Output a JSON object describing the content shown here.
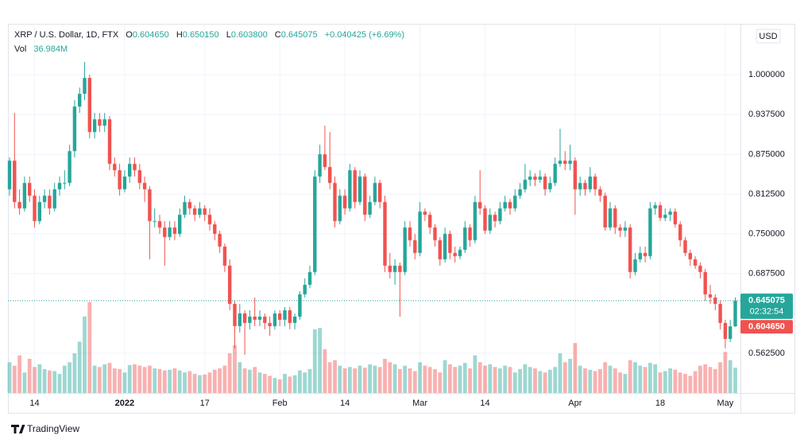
{
  "chart_data": {
    "type": "candlestick",
    "title": "XRP / U.S. Dollar, 1D, FTX",
    "legend": {
      "open_key": "O",
      "open": "0.604650",
      "high_key": "H",
      "high": "0.650150",
      "low_key": "L",
      "low": "0.603800",
      "close_key": "C",
      "close": "0.645075",
      "change": "+0.040425 (+6.69%)",
      "volume_key": "Vol",
      "volume": "36.984M"
    },
    "countdown": "02:32:54",
    "currency": "USD",
    "brand": "TradingView",
    "up_color": "#26a69a",
    "down_color": "#ef5350",
    "grid": true,
    "ylim": [
      0.5,
      1.08
    ],
    "yticks": [
      {
        "value": 0.5625,
        "label": "0.562500"
      },
      {
        "value": 0.6875,
        "label": "0.687500"
      },
      {
        "value": 0.75,
        "label": "0.750000"
      },
      {
        "value": 0.8125,
        "label": "0.812500"
      },
      {
        "value": 0.875,
        "label": "0.875000"
      },
      {
        "value": 0.9375,
        "label": "0.937500"
      },
      {
        "value": 1,
        "label": "1.000000"
      }
    ],
    "volume_ylim": [
      0,
      540
    ],
    "xticks": [
      {
        "value": 5,
        "label": "14"
      },
      {
        "value": 23,
        "label": "2022"
      },
      {
        "value": 39,
        "label": "17"
      },
      {
        "value": 54,
        "label": "Feb"
      },
      {
        "value": 67,
        "label": "14"
      },
      {
        "value": 82,
        "label": "Mar"
      },
      {
        "value": 95,
        "label": "14"
      },
      {
        "value": 113,
        "label": "Apr"
      },
      {
        "value": 130,
        "label": "18"
      },
      {
        "value": 143,
        "label": "May"
      }
    ],
    "open": [
      0.82,
      0.865,
      0.8,
      0.79,
      0.83,
      0.81,
      0.77,
      0.8,
      0.81,
      0.79,
      0.82,
      0.83,
      0.83,
      0.88,
      0.95,
      0.97,
      0.995,
      0.91,
      0.93,
      0.92,
      0.93,
      0.86,
      0.85,
      0.82,
      0.84,
      0.86,
      0.85,
      0.83,
      0.82,
      0.77,
      0.77,
      0.76,
      0.745,
      0.76,
      0.75,
      0.78,
      0.8,
      0.79,
      0.78,
      0.79,
      0.78,
      0.765,
      0.75,
      0.73,
      0.7,
      0.64,
      0.605,
      0.625,
      0.61,
      0.62,
      0.615,
      0.62,
      0.61,
      0.605,
      0.625,
      0.615,
      0.63,
      0.61,
      0.62,
      0.655,
      0.67,
      0.69,
      0.84,
      0.875,
      0.855,
      0.83,
      0.77,
      0.81,
      0.79,
      0.85,
      0.8,
      0.84,
      0.78,
      0.8,
      0.83,
      0.8,
      0.7,
      0.69,
      0.7,
      0.69,
      0.76,
      0.74,
      0.72,
      0.785,
      0.78,
      0.76,
      0.74,
      0.71,
      0.75,
      0.72,
      0.715,
      0.725,
      0.76,
      0.74,
      0.8,
      0.79,
      0.755,
      0.78,
      0.77,
      0.79,
      0.8,
      0.79,
      0.81,
      0.82,
      0.835,
      0.84,
      0.835,
      0.84,
      0.82,
      0.83,
      0.86,
      0.865,
      0.86,
      0.865,
      0.82,
      0.83,
      0.82,
      0.84,
      0.82,
      0.81,
      0.76,
      0.79,
      0.76,
      0.755,
      0.76,
      0.69,
      0.71,
      0.72,
      0.715,
      0.79,
      0.795,
      0.775,
      0.78,
      0.785,
      0.765,
      0.74,
      0.72,
      0.71,
      0.7,
      0.69,
      0.655,
      0.65,
      0.64,
      0.61,
      0.585,
      0.60465
    ],
    "high": [
      0.87,
      0.94,
      0.82,
      0.84,
      0.84,
      0.82,
      0.81,
      0.82,
      0.82,
      0.83,
      0.84,
      0.85,
      0.89,
      0.96,
      0.98,
      1.02,
      1.0,
      0.94,
      0.94,
      0.94,
      0.935,
      0.87,
      0.86,
      0.85,
      0.87,
      0.87,
      0.86,
      0.84,
      0.825,
      0.79,
      0.78,
      0.77,
      0.77,
      0.77,
      0.79,
      0.81,
      0.805,
      0.795,
      0.8,
      0.795,
      0.79,
      0.77,
      0.755,
      0.735,
      0.71,
      0.645,
      0.64,
      0.63,
      0.63,
      0.65,
      0.63,
      0.625,
      0.62,
      0.63,
      0.63,
      0.635,
      0.635,
      0.625,
      0.66,
      0.68,
      0.7,
      0.85,
      0.89,
      0.92,
      0.91,
      0.84,
      0.82,
      0.82,
      0.86,
      0.855,
      0.85,
      0.845,
      0.81,
      0.84,
      0.835,
      0.81,
      0.72,
      0.71,
      0.705,
      0.77,
      0.77,
      0.75,
      0.8,
      0.79,
      0.785,
      0.765,
      0.745,
      0.76,
      0.755,
      0.73,
      0.73,
      0.77,
      0.765,
      0.81,
      0.85,
      0.795,
      0.79,
      0.785,
      0.8,
      0.81,
      0.805,
      0.82,
      0.83,
      0.86,
      0.85,
      0.845,
      0.85,
      0.845,
      0.84,
      0.87,
      0.915,
      0.88,
      0.89,
      0.87,
      0.84,
      0.835,
      0.855,
      0.845,
      0.825,
      0.815,
      0.8,
      0.795,
      0.765,
      0.77,
      0.765,
      0.72,
      0.73,
      0.73,
      0.8,
      0.8,
      0.8,
      0.79,
      0.79,
      0.79,
      0.77,
      0.745,
      0.725,
      0.715,
      0.705,
      0.695,
      0.67,
      0.655,
      0.645,
      0.615,
      0.615,
      0.65015
    ],
    "low": [
      0.81,
      0.79,
      0.78,
      0.785,
      0.8,
      0.76,
      0.765,
      0.79,
      0.78,
      0.785,
      0.81,
      0.82,
      0.825,
      0.87,
      0.94,
      0.96,
      0.9,
      0.9,
      0.91,
      0.91,
      0.85,
      0.84,
      0.81,
      0.815,
      0.83,
      0.84,
      0.82,
      0.8,
      0.71,
      0.76,
      0.75,
      0.7,
      0.74,
      0.74,
      0.745,
      0.775,
      0.78,
      0.77,
      0.775,
      0.77,
      0.755,
      0.74,
      0.72,
      0.69,
      0.63,
      0.57,
      0.595,
      0.56,
      0.6,
      0.605,
      0.605,
      0.6,
      0.59,
      0.6,
      0.605,
      0.605,
      0.6,
      0.6,
      0.615,
      0.65,
      0.665,
      0.685,
      0.83,
      0.85,
      0.82,
      0.76,
      0.765,
      0.78,
      0.785,
      0.79,
      0.795,
      0.77,
      0.775,
      0.795,
      0.79,
      0.69,
      0.68,
      0.67,
      0.62,
      0.685,
      0.73,
      0.71,
      0.715,
      0.77,
      0.75,
      0.73,
      0.7,
      0.705,
      0.71,
      0.705,
      0.71,
      0.72,
      0.73,
      0.735,
      0.78,
      0.75,
      0.75,
      0.76,
      0.765,
      0.785,
      0.78,
      0.785,
      0.805,
      0.815,
      0.825,
      0.825,
      0.83,
      0.81,
      0.815,
      0.825,
      0.855,
      0.85,
      0.85,
      0.78,
      0.81,
      0.81,
      0.815,
      0.81,
      0.8,
      0.755,
      0.755,
      0.75,
      0.745,
      0.745,
      0.68,
      0.685,
      0.705,
      0.705,
      0.71,
      0.78,
      0.77,
      0.77,
      0.77,
      0.76,
      0.73,
      0.715,
      0.7,
      0.695,
      0.68,
      0.645,
      0.64,
      0.63,
      0.6,
      0.57,
      0.58,
      0.6038
    ],
    "close": [
      0.865,
      0.8,
      0.79,
      0.83,
      0.81,
      0.77,
      0.8,
      0.81,
      0.79,
      0.82,
      0.83,
      0.83,
      0.88,
      0.95,
      0.97,
      0.995,
      0.91,
      0.93,
      0.92,
      0.93,
      0.86,
      0.85,
      0.82,
      0.84,
      0.86,
      0.85,
      0.83,
      0.82,
      0.77,
      0.77,
      0.76,
      0.745,
      0.76,
      0.75,
      0.78,
      0.8,
      0.79,
      0.78,
      0.79,
      0.78,
      0.765,
      0.75,
      0.73,
      0.7,
      0.64,
      0.605,
      0.625,
      0.61,
      0.62,
      0.615,
      0.62,
      0.61,
      0.605,
      0.625,
      0.615,
      0.63,
      0.61,
      0.62,
      0.655,
      0.67,
      0.69,
      0.84,
      0.875,
      0.855,
      0.83,
      0.77,
      0.81,
      0.79,
      0.85,
      0.8,
      0.84,
      0.78,
      0.8,
      0.83,
      0.8,
      0.7,
      0.69,
      0.7,
      0.69,
      0.76,
      0.74,
      0.72,
      0.785,
      0.78,
      0.76,
      0.74,
      0.71,
      0.75,
      0.72,
      0.715,
      0.725,
      0.76,
      0.74,
      0.8,
      0.79,
      0.755,
      0.78,
      0.77,
      0.79,
      0.8,
      0.79,
      0.81,
      0.82,
      0.835,
      0.84,
      0.835,
      0.84,
      0.82,
      0.83,
      0.86,
      0.865,
      0.86,
      0.865,
      0.82,
      0.83,
      0.82,
      0.84,
      0.82,
      0.81,
      0.76,
      0.79,
      0.76,
      0.755,
      0.76,
      0.69,
      0.71,
      0.72,
      0.715,
      0.79,
      0.795,
      0.775,
      0.78,
      0.785,
      0.765,
      0.74,
      0.72,
      0.71,
      0.7,
      0.69,
      0.655,
      0.65,
      0.64,
      0.61,
      0.585,
      0.60465,
      0.645075
    ],
    "volume": [
      45,
      40,
      55,
      30,
      50,
      38,
      42,
      35,
      33,
      32,
      28,
      40,
      45,
      58,
      75,
      112,
      133,
      40,
      38,
      42,
      44,
      36,
      35,
      30,
      41,
      42,
      40,
      38,
      40,
      36,
      35,
      33,
      34,
      36,
      33,
      30,
      32,
      28,
      26,
      27,
      30,
      34,
      36,
      40,
      58,
      70,
      45,
      36,
      34,
      38,
      30,
      28,
      25,
      22,
      20,
      28,
      24,
      26,
      33,
      30,
      35,
      93,
      95,
      64,
      45,
      48,
      40,
      36,
      38,
      36,
      40,
      37,
      42,
      40,
      38,
      50,
      45,
      42,
      35,
      40,
      36,
      32,
      45,
      40,
      38,
      35,
      30,
      48,
      42,
      38,
      40,
      44,
      36,
      55,
      45,
      40,
      42,
      38,
      36,
      40,
      38,
      30,
      35,
      42,
      38,
      36,
      32,
      30,
      34,
      38,
      58,
      45,
      50,
      73,
      40,
      36,
      34,
      32,
      35,
      45,
      40,
      36,
      30,
      28,
      48,
      45,
      40,
      38,
      44,
      42,
      30,
      32,
      36,
      34,
      30,
      28,
      25,
      32,
      40,
      42,
      38,
      35,
      45,
      60,
      48,
      36.984
    ]
  }
}
